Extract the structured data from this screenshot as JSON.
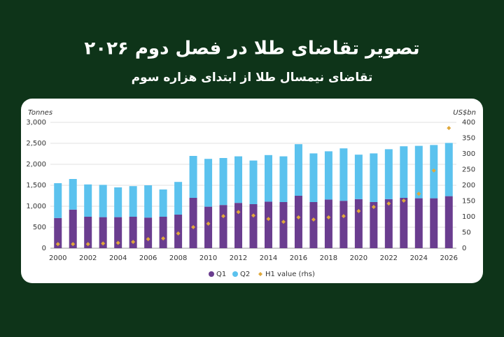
{
  "chart_data": {
    "type": "bar",
    "stacked": true,
    "title": "تصویر تقاضای طلا در فصل دوم ۲۰۲۶",
    "subtitle": "تقاضای نیمسال طلا از ابتدای هزاره سوم",
    "ylabel": "Tonnes",
    "y2label": "US$bn",
    "categories": [
      "2000",
      null,
      "2002",
      null,
      "2004",
      null,
      "2006",
      null,
      "2008",
      null,
      "2010",
      null,
      "2012",
      null,
      "2014",
      null,
      "2016",
      null,
      "2018",
      null,
      "2020",
      null,
      "2022",
      null,
      "2024",
      null,
      "2026"
    ],
    "series": [
      {
        "name": "Q1",
        "color": "#6a3d8f",
        "values": [
          720,
          920,
          750,
          740,
          740,
          750,
          730,
          750,
          800,
          1200,
          990,
          1030,
          1080,
          1050,
          1110,
          1100,
          1250,
          1100,
          1160,
          1130,
          1170,
          1100,
          1170,
          1200,
          1190,
          1190,
          1240
        ]
      },
      {
        "name": "Q2",
        "color": "#5bc2ee",
        "values": [
          830,
          730,
          770,
          770,
          710,
          730,
          770,
          650,
          780,
          1000,
          1140,
          1120,
          1110,
          1040,
          1110,
          1090,
          1230,
          1160,
          1150,
          1250,
          1060,
          1160,
          1190,
          1230,
          1250,
          1270,
          1270
        ]
      },
      {
        "name": "H1 value (rhs)",
        "color": "#e0a83a",
        "type": "scatter",
        "axis": "y2",
        "values": [
          13,
          13,
          13,
          15,
          17,
          20,
          29,
          31,
          47,
          67,
          78,
          102,
          115,
          104,
          93,
          84,
          98,
          91,
          98,
          102,
          118,
          131,
          142,
          151,
          173,
          247,
          382
        ]
      }
    ],
    "ylim": [
      0,
      3000
    ],
    "yticks": [
      0,
      500,
      {
        "value": 1000,
        "label": "1,000"
      },
      {
        "value": 1500,
        "label": "1,500"
      },
      {
        "value": 2000,
        "label": "2,000"
      },
      {
        "value": 2500,
        "label": "2,500"
      },
      {
        "value": 3000,
        "label": "3,000"
      }
    ],
    "y2lim": [
      0,
      400
    ],
    "y2ticks": [
      0,
      50,
      100,
      150,
      200,
      250,
      300,
      350,
      400
    ],
    "grid": true
  }
}
